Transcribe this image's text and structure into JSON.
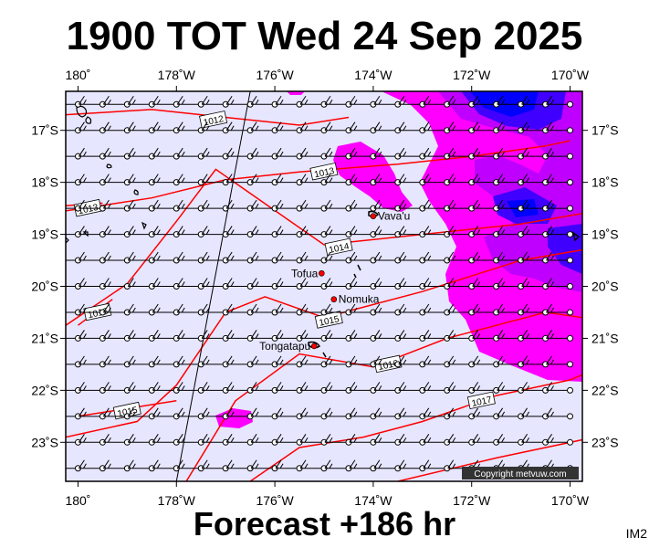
{
  "title": "1900 TOT Wed 24 Sep 2025",
  "footer": "Forecast +186 hr",
  "corner_label": "IM2",
  "copyright": "Copyright metvuw.com",
  "colors": {
    "background": "#e6e6ff",
    "isobar": "#ff0000",
    "rain_light": "#ff00ff",
    "rain_medium": "#c000ff",
    "rain_heavy": "#4000ff",
    "rain_intense": "#0000ff",
    "place_dot": "#ff0000"
  },
  "map": {
    "lon_range": [
      -180.25,
      -169.75
    ],
    "lat_range": [
      -23.75,
      -16.25
    ],
    "lon_ticks": [
      {
        "value": 180,
        "label": "180˚"
      },
      {
        "value": -178,
        "label": "178˚W"
      },
      {
        "value": -176,
        "label": "176˚W"
      },
      {
        "value": -174,
        "label": "174˚W"
      },
      {
        "value": -172,
        "label": "172˚W"
      },
      {
        "value": -170,
        "label": "170˚W"
      }
    ],
    "lat_ticks": [
      {
        "value": -17,
        "label": "17˚S"
      },
      {
        "value": -18,
        "label": "18˚S"
      },
      {
        "value": -19,
        "label": "19˚S"
      },
      {
        "value": -20,
        "label": "20˚S"
      },
      {
        "value": -21,
        "label": "21˚S"
      },
      {
        "value": -22,
        "label": "22˚S"
      },
      {
        "value": -23,
        "label": "23˚S"
      }
    ],
    "wind_grid": {
      "lon_step": 0.5,
      "lat_step": 0.5,
      "speed_kt": 15,
      "direction_deg": 270
    }
  },
  "places": [
    {
      "name": "Vava'u",
      "lon": -174.0,
      "lat": -18.65
    },
    {
      "name": "Tofua",
      "lon": -175.05,
      "lat": -19.75
    },
    {
      "name": "Nomuka",
      "lon": -174.8,
      "lat": -20.25
    },
    {
      "name": "Tongatapu",
      "lon": -175.2,
      "lat": -21.15
    }
  ],
  "isobars": [
    {
      "label": "1012",
      "label_at": [
        -177.25,
        -16.8
      ],
      "points": [
        [
          -180.25,
          -16.7
        ],
        [
          -178.5,
          -16.6
        ],
        [
          -177,
          -16.75
        ],
        [
          -175.5,
          -16.9
        ],
        [
          -174.5,
          -16.75
        ]
      ]
    },
    {
      "label": "1013",
      "label_at": [
        -175.0,
        -17.8
      ],
      "points": [
        [
          -180.25,
          -18.55
        ],
        [
          -178.5,
          -18.3
        ],
        [
          -177.0,
          -17.95
        ],
        [
          -175.5,
          -17.8
        ],
        [
          -173.5,
          -17.65
        ],
        [
          -172.0,
          -17.5
        ],
        [
          -170.5,
          -17.3
        ],
        [
          -170.0,
          -17.2
        ]
      ]
    },
    {
      "label": "1013",
      "label_at": [
        -179.8,
        -18.5
      ],
      "points": [
        [
          -180.25,
          -18.45
        ],
        [
          -179.5,
          -18.4
        ]
      ]
    },
    {
      "label": "1014",
      "label_at": [
        -174.7,
        -19.25
      ],
      "points": [
        [
          -180.25,
          -20.75
        ],
        [
          -179.0,
          -19.95
        ],
        [
          -178.0,
          -18.75
        ],
        [
          -177.2,
          -17.75
        ],
        [
          -175.0,
          -19.2
        ],
        [
          -173.0,
          -19.0
        ],
        [
          -171.0,
          -18.8
        ],
        [
          -169.75,
          -18.6
        ]
      ]
    },
    {
      "label": "1015",
      "label_at": [
        -174.9,
        -20.65
      ],
      "points": [
        [
          -180.25,
          -22.9
        ],
        [
          -178.8,
          -22.6
        ],
        [
          -178.0,
          -21.9
        ],
        [
          -177.0,
          -20.5
        ],
        [
          -176.2,
          -20.2
        ],
        [
          -175.0,
          -20.6
        ],
        [
          -173.0,
          -20.1
        ],
        [
          -171.0,
          -19.5
        ],
        [
          -169.75,
          -19.3
        ]
      ]
    },
    {
      "label": "1016",
      "label_at": [
        -179.6,
        -20.5
      ],
      "points": [
        [
          -180.0,
          -20.75
        ],
        [
          -179.3,
          -20.25
        ]
      ]
    },
    {
      "label": "1015",
      "label_at": [
        -179.0,
        -22.4
      ],
      "points": [
        [
          -180.0,
          -22.5
        ],
        [
          -178.0,
          -22.2
        ]
      ]
    },
    {
      "label": "1016",
      "label_at": [
        -173.7,
        -21.5
      ],
      "points": [
        [
          -177.8,
          -23.75
        ],
        [
          -176.8,
          -22.2
        ],
        [
          -175.5,
          -21.3
        ],
        [
          -174.0,
          -21.55
        ],
        [
          -172.5,
          -21.0
        ],
        [
          -170.5,
          -20.5
        ],
        [
          -169.75,
          -20.6
        ]
      ]
    },
    {
      "label": "1017",
      "label_at": [
        -171.8,
        -22.2
      ],
      "points": [
        [
          -176.5,
          -23.75
        ],
        [
          -175.5,
          -23.1
        ],
        [
          -174.2,
          -22.9
        ],
        [
          -173.0,
          -22.6
        ],
        [
          -171.5,
          -22.1
        ],
        [
          -170.0,
          -21.8
        ],
        [
          -169.75,
          -21.7
        ]
      ]
    },
    {
      "label": "",
      "label_at": [
        -172.5,
        -23.6
      ],
      "points": [
        [
          -173.5,
          -23.75
        ],
        [
          -171.5,
          -23.3
        ],
        [
          -169.75,
          -22.95
        ]
      ]
    }
  ],
  "dateline_meridian": {
    "lon_top": -176.5,
    "lat_top": -16.25,
    "lon_bottom": -178.0,
    "lat_bottom": -23.75
  }
}
